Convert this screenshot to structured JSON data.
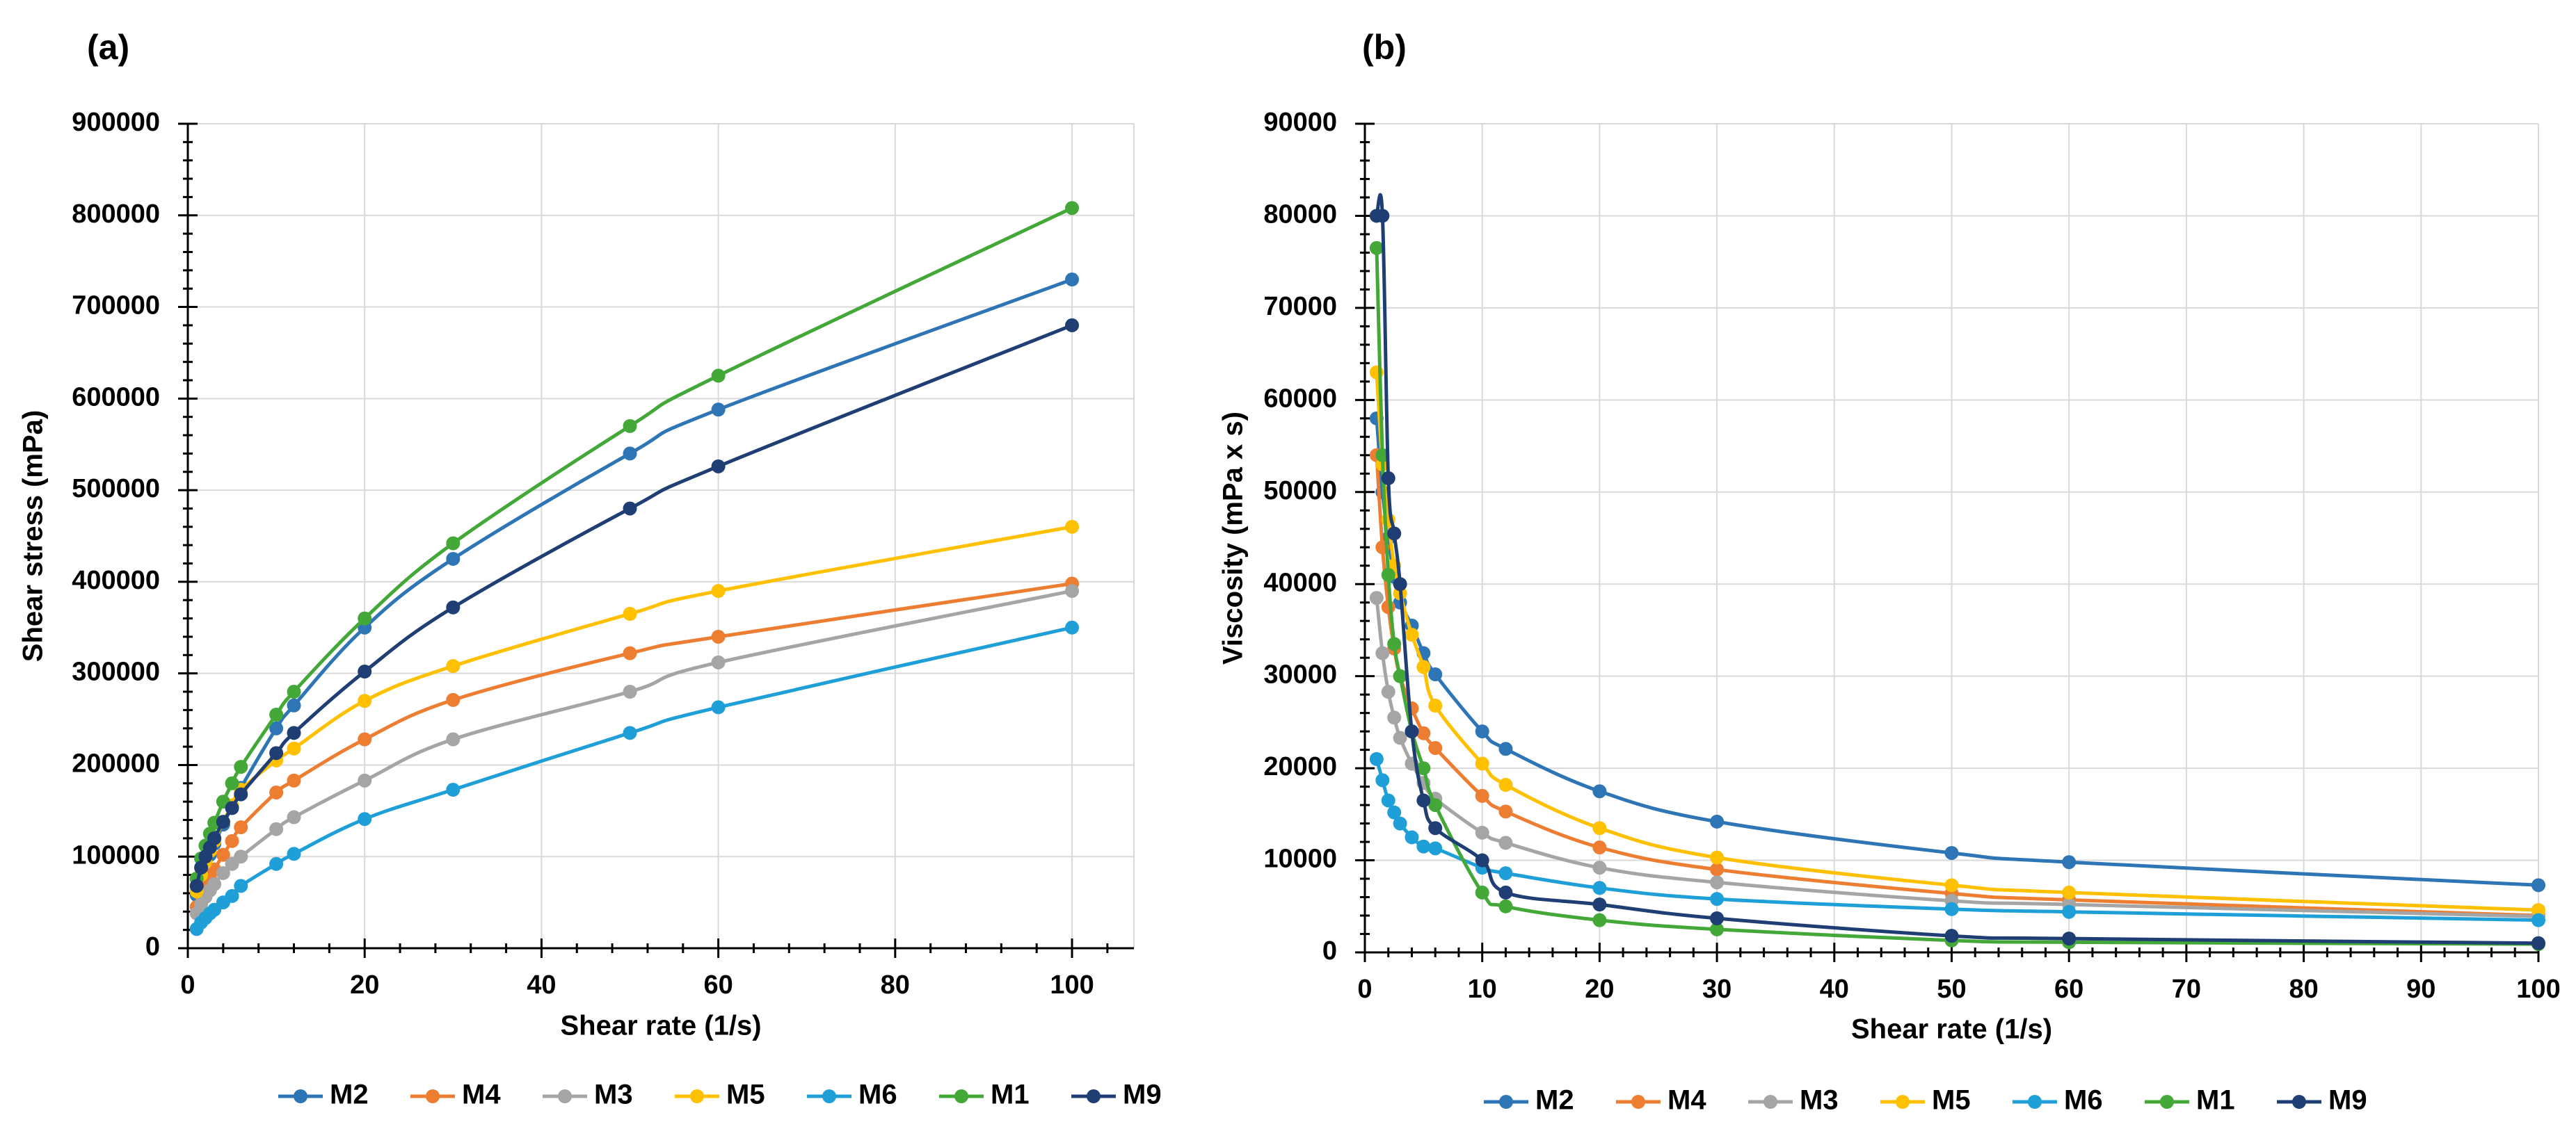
{
  "chart_data": [
    {
      "type": "line",
      "panel_label": "(a)",
      "xlabel": "Shear rate (1/s)",
      "ylabel": "Shear stress (mPa)",
      "xlim": [
        0,
        107
      ],
      "ylim": [
        0,
        900000
      ],
      "x_ticks": [
        0,
        20,
        40,
        60,
        80,
        100
      ],
      "x_tick_labels": [
        "0",
        "20",
        "40",
        "60",
        "80",
        "100"
      ],
      "y_ticks": [
        0,
        100000,
        200000,
        300000,
        400000,
        500000,
        600000,
        700000,
        800000,
        900000
      ],
      "y_tick_labels": [
        "0",
        "100000",
        "200000",
        "300000",
        "400000",
        "500000",
        "600000",
        "700000",
        "800000",
        "900000"
      ],
      "grid": true,
      "legend_position": "bottom",
      "x": [
        1,
        1.5,
        2,
        2.5,
        3,
        4,
        5,
        6,
        10,
        12,
        20,
        30,
        50,
        60,
        100
      ],
      "series": [
        {
          "name": "M2",
          "color": "#2E75B6",
          "values": [
            58000,
            75000,
            90000,
            102000,
            114000,
            135000,
            155000,
            175000,
            240000,
            265000,
            350000,
            425000,
            540000,
            588000,
            730000
          ]
        },
        {
          "name": "M4",
          "color": "#ED7D31",
          "values": [
            45000,
            58000,
            68000,
            77000,
            86000,
            102000,
            117000,
            132000,
            170000,
            183000,
            228000,
            271000,
            322000,
            340000,
            398000
          ]
        },
        {
          "name": "M3",
          "color": "#A5A5A5",
          "values": [
            38000,
            48000,
            56000,
            63000,
            70000,
            82000,
            92000,
            100000,
            130000,
            143000,
            183000,
            228000,
            280000,
            312000,
            390000
          ]
        },
        {
          "name": "M5",
          "color": "#FFC000",
          "values": [
            62000,
            80000,
            94000,
            106000,
            117000,
            138000,
            156000,
            173000,
            205000,
            218000,
            270000,
            308000,
            365000,
            390000,
            460000
          ]
        },
        {
          "name": "M6",
          "color": "#1F9FD8",
          "values": [
            21000,
            28000,
            33000,
            38000,
            42000,
            50000,
            57000,
            68000,
            92000,
            103000,
            141000,
            173000,
            235000,
            263000,
            350000
          ]
        },
        {
          "name": "M1",
          "color": "#43A838",
          "values": [
            76000,
            98000,
            112000,
            125000,
            137000,
            160000,
            180000,
            198000,
            255000,
            280000,
            360000,
            442000,
            570000,
            625000,
            808000
          ]
        },
        {
          "name": "M9",
          "color": "#1F3E73",
          "values": [
            68000,
            88000,
            100000,
            110000,
            120000,
            138000,
            153000,
            168000,
            213000,
            235000,
            302000,
            372000,
            480000,
            526000,
            680000
          ]
        }
      ]
    },
    {
      "type": "line",
      "panel_label": "(b)",
      "xlabel": "Shear rate (1/s)",
      "ylabel": "Viscosity (mPa x s)",
      "xlim": [
        0,
        100
      ],
      "ylim": [
        0,
        90000
      ],
      "x_ticks": [
        0,
        10,
        20,
        30,
        40,
        50,
        60,
        70,
        80,
        90,
        100
      ],
      "x_tick_labels": [
        "0",
        "10",
        "20",
        "30",
        "40",
        "50",
        "60",
        "70",
        "80",
        "90",
        "100"
      ],
      "y_ticks": [
        0,
        10000,
        20000,
        30000,
        40000,
        50000,
        60000,
        70000,
        80000,
        90000
      ],
      "y_tick_labels": [
        "0",
        "10000",
        "20000",
        "30000",
        "40000",
        "50000",
        "60000",
        "70000",
        "80000",
        "90000"
      ],
      "grid": true,
      "legend_position": "bottom",
      "x": [
        1,
        1.5,
        2,
        2.5,
        3,
        4,
        5,
        6,
        10,
        12,
        20,
        30,
        50,
        60,
        100
      ],
      "series": [
        {
          "name": "M2",
          "color": "#2E75B6",
          "values": [
            58000,
            50000,
            45000,
            40800,
            38000,
            35500,
            32500,
            30200,
            24000,
            22100,
            17500,
            14200,
            10800,
            9800,
            7300
          ]
        },
        {
          "name": "M4",
          "color": "#ED7D31",
          "values": [
            54000,
            44000,
            37500,
            33000,
            30000,
            26500,
            23800,
            22200,
            17000,
            15300,
            11400,
            9000,
            6400,
            5700,
            4000
          ]
        },
        {
          "name": "M3",
          "color": "#A5A5A5",
          "values": [
            38500,
            32500,
            28300,
            25500,
            23300,
            20500,
            18400,
            16700,
            13000,
            11900,
            9200,
            7600,
            5600,
            5200,
            3900
          ]
        },
        {
          "name": "M5",
          "color": "#FFC000",
          "values": [
            63000,
            53000,
            47000,
            42000,
            39000,
            34500,
            31000,
            26800,
            20500,
            18200,
            13500,
            10300,
            7300,
            6500,
            4600
          ]
        },
        {
          "name": "M6",
          "color": "#1F9FD8",
          "values": [
            21000,
            18700,
            16500,
            15200,
            14000,
            12500,
            11500,
            11300,
            9200,
            8600,
            7000,
            5800,
            4700,
            4400,
            3500
          ]
        },
        {
          "name": "M1",
          "color": "#43A838",
          "values": [
            76500,
            54000,
            41000,
            33500,
            30000,
            24000,
            20000,
            16000,
            6500,
            5000,
            3500,
            2500,
            1300,
            1100,
            900
          ]
        },
        {
          "name": "M9",
          "color": "#1F3E73",
          "values": [
            80000,
            80000,
            51500,
            45500,
            40000,
            24000,
            16500,
            13500,
            10000,
            6500,
            5200,
            3700,
            1800,
            1500,
            1000
          ]
        }
      ]
    }
  ]
}
